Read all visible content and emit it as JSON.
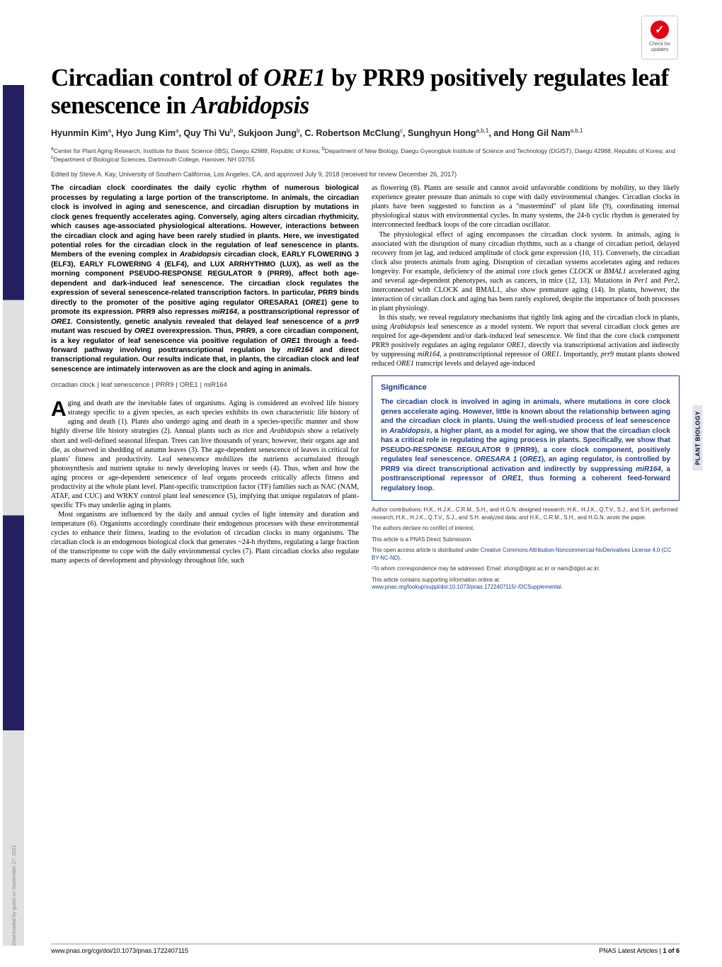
{
  "crossmark": {
    "line1": "Check for",
    "line2": "updates"
  },
  "download_note": "Downloaded by guest on September 27, 2021",
  "side_label": "PLANT BIOLOGY",
  "title_pre": "Circadian control of ",
  "title_gene": "ORE1",
  "title_mid": " by PRR9 positively regulates leaf senescence in ",
  "title_species": "Arabidopsis",
  "authors_html": "Hyunmin Kim<sup>a</sup>, Hyo Jung Kim<sup>a</sup>, Quy Thi Vu<sup>b</sup>, Sukjoon Jung<sup>b</sup>, C. Robertson McClung<sup>c</sup>, Sunghyun Hong<sup>a,b,1</sup>, and Hong Gil Nam<sup>a,b,1</sup>",
  "affil_html": "<sup>a</sup>Center for Plant Aging Research, Institute for Basic Science (IBS), Daegu 42988, Republic of Korea; <sup>b</sup>Department of New Biology, Daegu Gyeongbuk Institute of Science and Technology (DGIST), Daegu 42988, Republic of Korea; and <sup>c</sup>Department of Biological Sciences, Dartmouth College, Hanover, NH 03755",
  "edited": "Edited by Steve A. Kay, University of Southern California, Los Angeles, CA, and approved July 9, 2018 (received for review December 26, 2017)",
  "abstract": "The circadian clock coordinates the daily cyclic rhythm of numerous biological processes by regulating a large portion of the transcriptome. In animals, the circadian clock is involved in aging and senescence, and circadian disruption by mutations in clock genes frequently accelerates aging. Conversely, aging alters circadian rhythmicity, which causes age-associated physiological alterations. However, interactions between the circadian clock and aging have been rarely studied in plants. Here, we investigated potential roles for the circadian clock in the regulation of leaf senescence in plants. Members of the evening complex in <span class=\"ital\">Arabidopsis</span> circadian clock, EARLY FLOWERING 3 (ELF3), EARLY FLOWERING 4 (ELF4), and LUX ARRHYTHMO (LUX), as well as the morning component PSEUDO-RESPONSE REGULATOR 9 (PRR9), affect both age-dependent and dark-induced leaf senescence. The circadian clock regulates the expression of several senescence-related transcription factors. In particular, PRR9 binds directly to the promoter of the positive aging regulator ORESARA1 (<span class=\"ital\">ORE1</span>) gene to promote its expression. PRR9 also represses <span class=\"ital\">miR164</span>, a posttranscriptional repressor of <span class=\"ital\">ORE1</span>. Consistently, genetic analysis revealed that delayed leaf senescence of a <span class=\"ital\">prr9</span> mutant was rescued by <span class=\"ital\">ORE1</span> overexpression. Thus, PRR9, a core circadian component, is a key regulator of leaf senescence via positive regulation of <span class=\"ital\">ORE1</span> through a feed-forward pathway involving posttranscriptional regulation by <span class=\"ital\">miR164</span> and direct transcriptional regulation. Our results indicate that, in plants, the circadian clock and leaf senescence are intimately interwoven as are the clock and aging in animals.",
  "keywords": [
    "circadian clock",
    "leaf senescence",
    "PRR9",
    "ORE1",
    "miR164"
  ],
  "col1_body": "<p><span class=\"dropcap\">A</span>ging and death are the inevitable fates of organisms. Aging is considered an evolved life history strategy specific to a given species, as each species exhibits its own characteristic life history of aging and death (1). Plants also undergo aging and death in a species-specific manner and show highly diverse life history strategies (2). Annual plants such as rice and <i>Arabidopsis</i> show a relatively short and well-defined seasonal lifespan. Trees can live thousands of years; however, their organs age and die, as observed in shedding of autumn leaves (3). The age-dependent senescence of leaves is critical for plants' fitness and productivity. Leaf senescence mobilizes the nutrients accumulated through photosynthesis and nutrient uptake to newly developing leaves or seeds (4). Thus, when and how the aging process or age-dependent senescence of leaf organs proceeds critically affects fitness and productivity at the whole plant level. Plant-specific transcription factor (TF) families such as NAC (NAM, ATAF, and CUC) and WRKY control plant leaf senescence (5), implying that unique regulators of plant-specific TFs may underlie aging in plants.</p><p>Most organisms are influenced by the daily and annual cycles of light intensity and duration and temperature (6). Organisms accordingly coordinate their endogenous processes with these environmental cycles to enhance their fitness, leading to the evolution of circadian clocks in many organisms. The circadian clock is an endogenous biological clock that generates ~24-h rhythms, regulating a large fraction of the transcriptome to cope with the daily environmental cycles (7). Plant circadian clocks also regulate many aspects of development and physiology throughout life, such</p>",
  "col2_top": "<p>as flowering (8). Plants are sessile and cannot avoid unfavorable conditions by mobility, so they likely experience greater pressure than animals to cope with daily environmental changes. Circadian clocks in plants have been suggested to function as a \"mastermind\" of plant life (9), coordinating internal physiological status with environmental cycles. In many systems, the 24-h cyclic rhythm is generated by interconnected feedback loops of the core circadian oscillator.</p><p>The physiological effect of aging encompasses the circadian clock system. In animals, aging is associated with the disruption of many circadian rhythms, such as a change of circadian period, delayed recovery from jet lag, and reduced amplitude of clock gene expression (10, 11). Conversely, the circadian clock also protects animals from aging. Disruption of circadian systems accelerates aging and reduces longevity. For example, deficiency of the animal core clock genes <span class=\"ital\">CLOCK</span> or <span class=\"ital\">BMAL1</span> accelerated aging and several age-dependent phenotypes, such as cancers, in mice (12, 13). Mutations in <span class=\"ital\">Per1</span> and <span class=\"ital\">Per2</span>, interconnected with CLOCK and BMAL1, also show premature aging (14). In plants, however, the interaction of circadian clock and aging has been rarely explored, despite the importance of both processes in plant physiology.</p><p>In this study, we reveal regulatory mechanisms that tightly link aging and the circadian clock in plants, using <span class=\"ital\">Arabidopsis</span> leaf senescence as a model system. We report that several circadian clock genes are required for age-dependent and/or dark-induced leaf senescence. We find that the core clock component PRR9 positively regulates an aging regulator <span class=\"ital\">ORE1</span>, directly via transcriptional activation and indirectly by suppressing <span class=\"ital\">miR164</span>, a posttranscriptional repressor of <span class=\"ital\">ORE1</span>. Importantly, <span class=\"ital\">prr9</span> mutant plants showed reduced <span class=\"ital\">ORE1</span> transcript levels and delayed age-induced</p>",
  "significance": {
    "title": "Significance",
    "body": "The circadian clock is involved in aging in animals, where mutations in core clock genes accelerate aging. However, little is known about the relationship between aging and the circadian clock in plants. Using the well-studied process of leaf senescence in <span class=\"ital\">Arabidopsis</span>, a higher plant, as a model for aging, we show that the circadian clock has a critical role in regulating the aging process in plants. Specifically, we show that PSEUDO-RESPONSE REGULATOR 9 (PRR9), a core clock component, positively regulates leaf senescence. <span class=\"ital\">ORESARA 1</span> (<span class=\"ital\">ORE1</span>), an aging regulator, is controlled by PRR9 via direct transcriptional activation and indirectly by suppressing <span class=\"ital\">miR164</span>, a posttranscriptional repressor of <span class=\"ital\">ORE1</span>, thus forming a coherent feed-forward regulatory loop."
  },
  "meta": {
    "contrib": "Author contributions: H.K., H.J.K., C.R.M., S.H., and H.G.N. designed research; H.K., H.J.K., Q.T.V., S.J., and S.H. performed research; H.K., H.J.K., Q.T.V., S.J., and S.H. analyzed data; and H.K., C.R.M., S.H., and H.G.N. wrote the paper.",
    "coi": "The authors declare no conflict of interest.",
    "direct": "This article is a PNAS Direct Submission.",
    "license_pre": "This open access article is distributed under ",
    "license_link": "Creative Commons Attribution-Noncommercial-NoDerivatives License 4.0 (CC BY-NC-ND)",
    "corr": "¹To whom correspondence may be addressed. Email: shong@dgist.ac.kr or nam@dgist.ac.kr.",
    "supp_pre": "This article contains supporting information online at ",
    "supp_link": "www.pnas.org/lookup/suppl/doi:10.1073/pnas.1722407115/-/DCSupplemental"
  },
  "footer": {
    "doi": "www.pnas.org/cgi/doi/10.1073/pnas.1722407115",
    "right_pre": "PNAS Latest Articles",
    "right_sep": " | ",
    "right_page": "1 of 6"
  }
}
